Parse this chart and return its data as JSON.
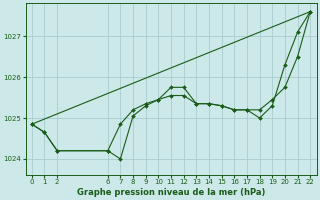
{
  "bg_color": "#cce8e8",
  "grid_color": "#aacccc",
  "line_color": "#1a5c1a",
  "title": "Graphe pression niveau de la mer (hPa)",
  "xlim": [
    -0.5,
    22.5
  ],
  "ylim": [
    1023.6,
    1027.8
  ],
  "yticks": [
    1024,
    1025,
    1026,
    1027
  ],
  "xticks": [
    0,
    1,
    2,
    6,
    7,
    8,
    9,
    10,
    11,
    12,
    13,
    14,
    15,
    16,
    17,
    18,
    19,
    20,
    21,
    22
  ],
  "series": [
    {
      "x": [
        0,
        1,
        2,
        6,
        7,
        8,
        9,
        10,
        11,
        12,
        13,
        14,
        15,
        16,
        17,
        18,
        19,
        20,
        21,
        22
      ],
      "y": [
        1024.85,
        1024.65,
        1024.2,
        1024.2,
        1024.0,
        1025.05,
        1025.3,
        1025.45,
        1025.75,
        1025.75,
        1025.35,
        1025.35,
        1025.3,
        1025.2,
        1025.2,
        1025.0,
        1025.3,
        1026.3,
        1027.1,
        1027.6
      ],
      "markers": true
    },
    {
      "x": [
        0,
        1,
        2,
        6,
        7,
        8,
        9,
        10,
        11,
        12,
        13,
        14,
        15,
        16,
        17,
        18,
        19,
        20,
        21,
        22
      ],
      "y": [
        1024.85,
        1024.65,
        1024.2,
        1024.2,
        1024.85,
        1025.2,
        1025.35,
        1025.45,
        1025.55,
        1025.55,
        1025.35,
        1025.35,
        1025.3,
        1025.2,
        1025.2,
        1025.2,
        1025.45,
        1025.75,
        1026.5,
        1027.6
      ],
      "markers": true
    },
    {
      "x": [
        0,
        22
      ],
      "y": [
        1024.85,
        1027.6
      ],
      "markers": false
    }
  ]
}
